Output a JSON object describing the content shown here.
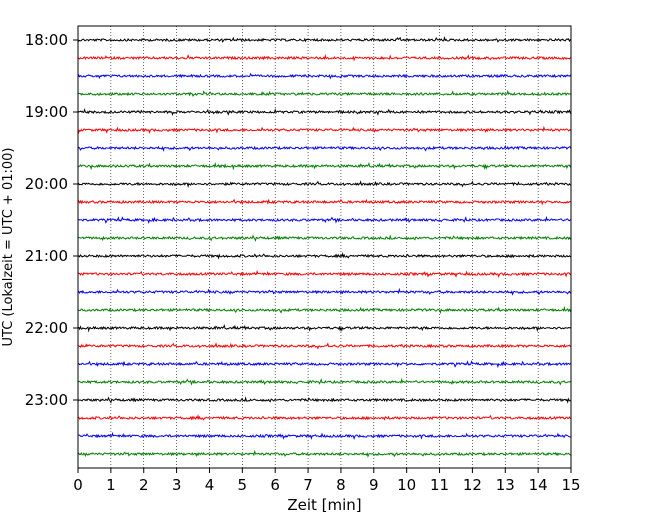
{
  "chart_data": {
    "type": "line",
    "title": "",
    "xlabel": "Zeit  [min]",
    "ylabel": "UTC (Lokalzeit = UTC + 01:00)",
    "xlim": [
      0,
      15
    ],
    "x_ticks": [
      "0",
      "1",
      "2",
      "3",
      "4",
      "5",
      "6",
      "7",
      "8",
      "9",
      "10",
      "11",
      "12",
      "13",
      "14",
      "15"
    ],
    "y_ticks": [
      "18:00",
      "19:00",
      "20:00",
      "21:00",
      "22:00",
      "23:00"
    ],
    "grid": "vertical dotted at each minute",
    "trace_interval_min": 15,
    "trace_start_utc": "18:00",
    "trace_count": 24,
    "colors_cycle": [
      "#000000",
      "#ff0000",
      "#0000ff",
      "#008000"
    ]
  }
}
